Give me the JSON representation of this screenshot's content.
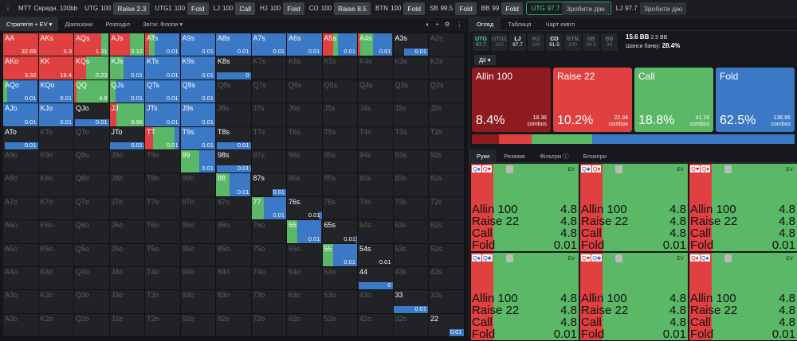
{
  "topbar": {
    "menu": "⋮",
    "format": "MTT",
    "stack_label": "Середн. 100bb",
    "positions": [
      {
        "pos": "UTG",
        "stack": "100",
        "action": "Raise 2.3"
      },
      {
        "pos": "UTG1",
        "stack": "100",
        "action": "Fold"
      },
      {
        "pos": "LJ",
        "stack": "100",
        "action": "Call"
      },
      {
        "pos": "HJ",
        "stack": "100",
        "action": "Fold"
      },
      {
        "pos": "CO",
        "stack": "100",
        "action": "Raise 8.5"
      },
      {
        "pos": "BTN",
        "stack": "100",
        "action": "Fold"
      },
      {
        "pos": "SB",
        "stack": "99.5",
        "action": "Fold"
      },
      {
        "pos": "BB",
        "stack": "99",
        "action": "Fold"
      }
    ],
    "active": {
      "pos": "UTG",
      "stack": "97.7",
      "action": "Зробити дію"
    },
    "next": {
      "pos": "LJ",
      "stack": "97.7",
      "action": "Зробити дію"
    }
  },
  "left_tabs": [
    {
      "label": "Стратегія + EV ▾",
      "active": true
    },
    {
      "label": "Діапазони",
      "active": false
    },
    {
      "label": "Розподіл",
      "active": false
    },
    {
      "label": "Звіти: Флопи ▾",
      "active": false
    }
  ],
  "tools": [
    "◐",
    "▪",
    "⚙",
    "⋮"
  ],
  "colors": {
    "allin": "#8e1b1f",
    "raise": "#e0403f",
    "call": "#5bb866",
    "fold": "#3b78c6"
  },
  "grid": {
    "rows": [
      [
        "AA",
        "AKs",
        "AQs",
        "AJs",
        "ATs",
        "A9s",
        "A8s",
        "A7s",
        "A6s",
        "A5s",
        "A4s",
        "A3s",
        "A2s"
      ],
      [
        "AKo",
        "KK",
        "KQs",
        "KJs",
        "KTs",
        "K9s",
        "K8s",
        "K7s",
        "K6s",
        "K5s",
        "K4s",
        "K3s",
        "K2s"
      ],
      [
        "AQo",
        "KQo",
        "QQ",
        "QJs",
        "QTs",
        "Q9s",
        "Q8s",
        "Q7s",
        "Q6s",
        "Q5s",
        "Q4s",
        "Q3s",
        "Q2s"
      ],
      [
        "AJo",
        "KJo",
        "QJo",
        "JJ",
        "JTs",
        "J9s",
        "J8s",
        "J7s",
        "J6s",
        "J5s",
        "J4s",
        "J3s",
        "J2s"
      ],
      [
        "ATo",
        "KTo",
        "QTo",
        "JTo",
        "TT",
        "T9s",
        "T8s",
        "T7s",
        "T6s",
        "T5s",
        "T4s",
        "T3s",
        "T2s"
      ],
      [
        "A9o",
        "K9o",
        "Q9o",
        "J9o",
        "T9o",
        "99",
        "98s",
        "97s",
        "96s",
        "95s",
        "94s",
        "93s",
        "92s"
      ],
      [
        "A8o",
        "K8o",
        "Q8o",
        "J8o",
        "T8o",
        "98o",
        "88",
        "87s",
        "86s",
        "85s",
        "84s",
        "83s",
        "82s"
      ],
      [
        "A7o",
        "K7o",
        "Q7o",
        "J7o",
        "T7o",
        "97o",
        "87o",
        "77",
        "76s",
        "75s",
        "74s",
        "73s",
        "72s"
      ],
      [
        "A6o",
        "K6o",
        "Q6o",
        "J6o",
        "T6o",
        "96o",
        "86o",
        "76o",
        "66",
        "65s",
        "64s",
        "63s",
        "62s"
      ],
      [
        "A5o",
        "K5o",
        "Q5o",
        "J5o",
        "T5o",
        "95o",
        "85o",
        "75o",
        "65o",
        "55",
        "54s",
        "53s",
        "52s"
      ],
      [
        "A4o",
        "K4o",
        "Q4o",
        "J4o",
        "T4o",
        "94o",
        "84o",
        "74o",
        "64o",
        "54o",
        "44",
        "43s",
        "42s"
      ],
      [
        "A3o",
        "K3o",
        "Q3o",
        "J3o",
        "T3o",
        "93o",
        "83o",
        "73o",
        "63o",
        "53o",
        "43o",
        "33",
        "32s"
      ],
      [
        "A2o",
        "K2o",
        "Q2o",
        "J2o",
        "T2o",
        "92o",
        "82o",
        "72o",
        "62o",
        "52o",
        "42o",
        "32o",
        "22"
      ]
    ]
  },
  "cells": {
    "AA": {
      "f": [
        0,
        1,
        0,
        0
      ],
      "ev": "32.65"
    },
    "AKs": {
      "f": [
        0,
        1,
        0,
        0
      ],
      "ev": "5.3"
    },
    "AQs": {
      "f": [
        0,
        0.78,
        0.22,
        0
      ],
      "ev": "1.31"
    },
    "AJs": {
      "f": [
        0,
        0.58,
        0.42,
        0
      ],
      "ev": "0.12"
    },
    "ATs": {
      "f": [
        0,
        0.12,
        0.15,
        0.73
      ],
      "ev": "0.01"
    },
    "A9s": {
      "f": [
        0,
        0,
        0,
        1
      ],
      "ev": "0.01"
    },
    "A8s": {
      "f": [
        0,
        0,
        0,
        1
      ],
      "ev": "0.01"
    },
    "A7s": {
      "f": [
        0,
        0,
        0,
        1
      ],
      "ev": "0.01"
    },
    "A6s": {
      "f": [
        0,
        0,
        0,
        1
      ],
      "ev": "0.01"
    },
    "A5s": {
      "f": [
        0,
        0.32,
        0.12,
        0.56
      ],
      "ev": "0.01"
    },
    "A4s": {
      "f": [
        0,
        0.06,
        0.38,
        0.56
      ],
      "ev": "0.01"
    },
    "A3s": {
      "bar": 0.7,
      "ev": "0.01"
    },
    "AKo": {
      "f": [
        0,
        1,
        0,
        0
      ],
      "ev": "3.32"
    },
    "KK": {
      "f": [
        0,
        1,
        0,
        0
      ],
      "ev": "16.4"
    },
    "KQs": {
      "f": [
        0,
        0.35,
        0.65,
        0
      ],
      "ev": "0.23"
    },
    "KJs": {
      "f": [
        0,
        0,
        0.4,
        0.6
      ],
      "ev": "0.01"
    },
    "KTs": {
      "f": [
        0,
        0,
        0,
        1
      ],
      "ev": "0.01"
    },
    "K9s": {
      "f": [
        0,
        0,
        0,
        1
      ],
      "ev": "0.01"
    },
    "K8s": {
      "bar": 0.98,
      "ev": "0"
    },
    "AQo": {
      "f": [
        0,
        0,
        0.12,
        0.88
      ],
      "ev": "0.01"
    },
    "KQo": {
      "f": [
        0,
        0,
        0,
        1
      ],
      "ev": "0.01"
    },
    "QQ": {
      "f": [
        0,
        0.08,
        0.92,
        0
      ],
      "ev": "4.8"
    },
    "QJs": {
      "f": [
        0,
        0,
        0.18,
        0.82
      ],
      "ev": "0.01"
    },
    "QTs": {
      "f": [
        0,
        0,
        0,
        1
      ],
      "ev": "0.01"
    },
    "Q9s": {
      "f": [
        0,
        0,
        0,
        1
      ],
      "ev": "0.01"
    },
    "AJo": {
      "f": [
        0,
        0,
        0,
        1
      ],
      "ev": "0.01"
    },
    "KJo": {
      "f": [
        0,
        0,
        0,
        1
      ],
      "ev": "0.01"
    },
    "QJo": {
      "bar": 0.98,
      "ev": "0.01"
    },
    "JJ": {
      "f": [
        0,
        0.2,
        0.8,
        0
      ],
      "ev": "0.96"
    },
    "JTs": {
      "f": [
        0,
        0,
        0,
        1
      ],
      "ev": "0.01"
    },
    "J9s": {
      "f": [
        0,
        0,
        0,
        1
      ],
      "ev": "0.01"
    },
    "ATo": {
      "bar": 0.96,
      "ev": "0.01"
    },
    "JTo": {
      "bar": 0.98,
      "ev": "0.01"
    },
    "TT": {
      "f": [
        0,
        0.22,
        0.62,
        0.16
      ],
      "ev": "0.01"
    },
    "T9s": {
      "f": [
        0,
        0,
        0,
        1
      ],
      "ev": "0.01"
    },
    "T8s": {
      "bar": 0.98,
      "ev": "0.01"
    },
    "99": {
      "f": [
        0,
        0,
        0.55,
        0.45
      ],
      "ev": "0.01"
    },
    "98s": {
      "bar": 0.98,
      "ev": "0.01"
    },
    "88": {
      "f": [
        0,
        0,
        0.4,
        0.6
      ],
      "ev": "0.01"
    },
    "87s": {
      "bar": 0.4,
      "ev": "0.01"
    },
    "77": {
      "f": [
        0,
        0,
        0.35,
        0.65
      ],
      "ev": "0.01"
    },
    "76s": {
      "bar": 0.08,
      "ev": "0.01"
    },
    "66": {
      "f": [
        0,
        0,
        0.3,
        0.7
      ],
      "ev": "0.01"
    },
    "65s": {
      "bar": 0.04,
      "ev": "0.01"
    },
    "55": {
      "f": [
        0,
        0,
        0.3,
        0.7
      ],
      "ev": "0.01"
    },
    "54s": {
      "bar": 0,
      "ev": "0.01"
    },
    "44": {
      "bar": 0.98,
      "ev": "0"
    },
    "33": {
      "bar": 0.98,
      "ev": "0.01"
    },
    "22": {
      "bar": 0.4,
      "ev": "0.01"
    }
  },
  "right": {
    "tabs": [
      {
        "label": "Огляд",
        "active": true
      },
      {
        "label": "Таблиця",
        "active": false
      },
      {
        "label": "Чарт еквіті",
        "active": false
      }
    ],
    "positions": [
      {
        "pos": "UTG",
        "val": "97.7",
        "state": "hero"
      },
      {
        "pos": "UTG1",
        "val": "100",
        "state": "off"
      },
      {
        "pos": "LJ",
        "val": "97.7",
        "state": "on"
      },
      {
        "pos": "HJ",
        "val": "100",
        "state": "off"
      },
      {
        "pos": "CO",
        "val": "91.5",
        "state": "on"
      },
      {
        "pos": "BTN",
        "val": "100",
        "state": "off"
      },
      {
        "pos": "SB",
        "val": "99.5",
        "state": "off"
      },
      {
        "pos": "BB",
        "val": "99",
        "state": "off"
      }
    ],
    "pot": "15.6 BB",
    "pot2": "2.5 BB",
    "equity_label": "Шанси банку:",
    "equity": "28.4%",
    "actions_dropdown": "Дії ▾",
    "actions": [
      {
        "name": "Allin 100",
        "pct": "8.4%",
        "combos": "18.36",
        "combos_label": "combos",
        "color": "#8e1b1f"
      },
      {
        "name": "Raise 22",
        "pct": "10.2%",
        "combos": "22.34",
        "combos_label": "combos",
        "color": "#e0403f"
      },
      {
        "name": "Call",
        "pct": "18.8%",
        "combos": "41.19",
        "combos_label": "combos",
        "color": "#5bb866"
      },
      {
        "name": "Fold",
        "pct": "62.5%",
        "combos": "136.66",
        "combos_label": "combos",
        "color": "#3b78c6"
      }
    ],
    "freq": [
      0.084,
      0.102,
      0.188,
      0.625
    ],
    "hand_tabs": [
      {
        "label": "Руки",
        "active": true
      },
      {
        "label": "Резюме",
        "active": false
      },
      {
        "label": "Фільтри ⓘ",
        "active": false
      },
      {
        "label": "Блокери",
        "active": false
      }
    ],
    "combos": [
      {
        "cards": [
          "Q♠",
          "Q♥"
        ],
        "ev": "EV",
        "rows": [
          [
            "Allin 100",
            "4.8"
          ],
          [
            "Raise 22",
            "4.8"
          ],
          [
            "Call",
            "4.8"
          ],
          [
            "Fold",
            "0.01"
          ]
        ]
      },
      {
        "cards": [
          "Q♣",
          "Q♦"
        ],
        "ev": "EV",
        "rows": [
          [
            "Allin 100",
            "4.8"
          ],
          [
            "Raise 22",
            "4.8"
          ],
          [
            "Call",
            "4.8"
          ],
          [
            "Fold",
            "0.01"
          ]
        ]
      },
      {
        "cards": [
          "Q♥",
          "Q♦"
        ],
        "ev": "EV",
        "rows": [
          [
            "Allin 100",
            "4.8"
          ],
          [
            "Raise 22",
            "4.8"
          ],
          [
            "Call",
            "4.8"
          ],
          [
            "Fold",
            "0.01"
          ]
        ]
      },
      {
        "cards": [
          "Q♠",
          "Q♣"
        ],
        "ev": "EV",
        "rows": [
          [
            "Allin 100",
            "4.8"
          ],
          [
            "Raise 22",
            "4.8"
          ],
          [
            "Call",
            "4.8"
          ],
          [
            "Fold",
            "0.01"
          ]
        ]
      },
      {
        "cards": [
          "Q♥",
          "Q♣"
        ],
        "ev": "EV",
        "rows": [
          [
            "Allin 100",
            "4.8"
          ],
          [
            "Raise 22",
            "4.8"
          ],
          [
            "Call",
            "4.8"
          ],
          [
            "Fold",
            "0.01"
          ]
        ]
      },
      {
        "cards": [
          "Q♦",
          "Q♠"
        ],
        "ev": "EV",
        "rows": [
          [
            "Allin 100",
            "4.8"
          ],
          [
            "Raise 22",
            "4.8"
          ],
          [
            "Call",
            "4.8"
          ],
          [
            "Fold",
            "0.01"
          ]
        ]
      }
    ]
  }
}
